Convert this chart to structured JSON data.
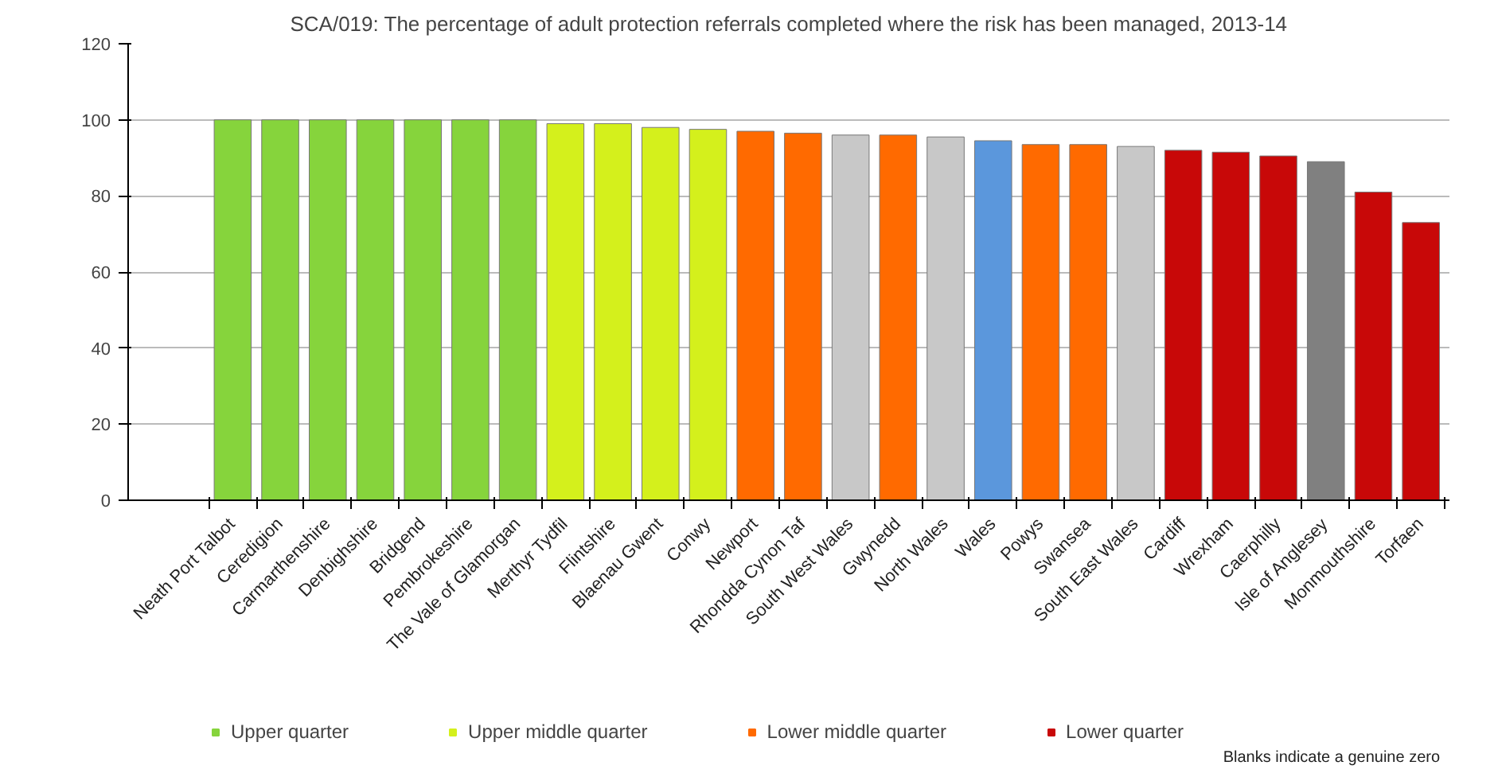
{
  "chart_data": {
    "type": "bar",
    "title": "SCA/019: The percentage of adult protection referrals completed where the risk has been managed, 2013-14",
    "categories": [
      "Neath Port Talbot",
      "Ceredigion",
      "Carmarthenshire",
      "Denbighshire",
      "Bridgend",
      "Pembrokeshire",
      "The Vale of Glamorgan",
      "Merthyr Tydfil",
      "Flintshire",
      "Blaenau Gwent",
      "Conwy",
      "Newport",
      "Rhondda Cynon Taf",
      "South West Wales",
      "Gwynedd",
      "North Wales",
      "Wales",
      "Powys",
      "Swansea",
      "South East Wales",
      "Cardiff",
      "Wrexham",
      "Caerphilly",
      "Isle of Anglesey",
      "Monmouthshire",
      "Torfaen"
    ],
    "series": [
      {
        "name": "Upper quarter",
        "color": "#86d43c",
        "values": [
          100,
          100,
          100,
          100,
          100,
          100,
          100,
          null,
          null,
          null,
          null,
          null,
          null,
          null,
          null,
          null,
          null,
          null,
          null,
          null,
          null,
          null,
          null,
          null,
          null,
          null
        ]
      },
      {
        "name": "Upper middle quarter",
        "color": "#d4f01c",
        "values": [
          null,
          null,
          null,
          null,
          null,
          null,
          null,
          99,
          99,
          98,
          97.5,
          null,
          null,
          null,
          null,
          null,
          null,
          null,
          null,
          null,
          null,
          null,
          null,
          null,
          null,
          null
        ]
      },
      {
        "name": "Lower middle quarter",
        "color": "#ff6a00",
        "values": [
          null,
          null,
          null,
          null,
          null,
          null,
          null,
          null,
          null,
          null,
          null,
          97,
          96.5,
          null,
          96,
          null,
          null,
          93.5,
          93.5,
          null,
          null,
          null,
          null,
          null,
          null,
          null
        ]
      },
      {
        "name": "Lower quarter",
        "color": "#c80808",
        "values": [
          null,
          null,
          null,
          null,
          null,
          null,
          null,
          null,
          null,
          null,
          null,
          null,
          null,
          null,
          null,
          null,
          null,
          null,
          null,
          null,
          92,
          91.5,
          90.5,
          null,
          81,
          73
        ]
      },
      {
        "color": "#c8c8c8",
        "values": [
          null,
          null,
          null,
          null,
          null,
          null,
          null,
          null,
          null,
          null,
          null,
          null,
          null,
          96,
          null,
          95.5,
          null,
          null,
          null,
          93,
          null,
          null,
          null,
          null,
          null,
          null
        ]
      },
      {
        "color": "#5b97dc",
        "values": [
          null,
          null,
          null,
          null,
          null,
          null,
          null,
          null,
          null,
          null,
          null,
          null,
          null,
          null,
          null,
          null,
          94.5,
          null,
          null,
          null,
          null,
          null,
          null,
          null,
          null,
          null
        ]
      },
      {
        "color": "#808080",
        "values": [
          null,
          null,
          null,
          null,
          null,
          null,
          null,
          null,
          null,
          null,
          null,
          null,
          null,
          null,
          null,
          null,
          null,
          null,
          null,
          null,
          null,
          null,
          null,
          89,
          null,
          null
        ]
      }
    ],
    "ylim": [
      0,
      120
    ],
    "yticks": [
      0,
      20,
      40,
      60,
      80,
      100,
      120
    ],
    "grid": "y",
    "legend": "bottom",
    "annotations": [
      "Blanks indicate a genuine zero"
    ]
  }
}
